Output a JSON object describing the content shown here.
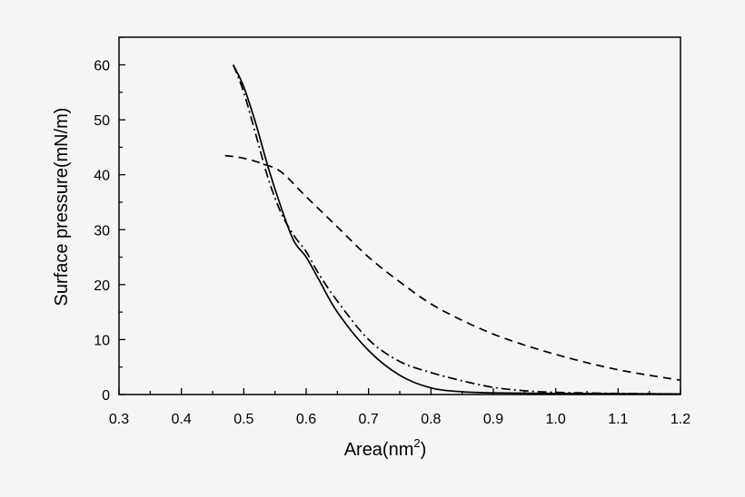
{
  "chart_data": {
    "type": "line",
    "title": "",
    "xlabel": "Area(nm",
    "xlabel_sup": "2",
    "xlabel_close": ")",
    "ylabel": "Surface pressure(mN/m)",
    "xlim": [
      0.3,
      1.2
    ],
    "ylim": [
      0,
      65
    ],
    "xticks": [
      0.3,
      0.4,
      0.5,
      0.6,
      0.7,
      0.8,
      0.9,
      1.0,
      1.1,
      1.2
    ],
    "xtick_labels": [
      "0.3",
      "0.4",
      "0.5",
      "0.6",
      "0.7",
      "0.8",
      "0.9",
      "1.0",
      "1.1",
      "1.2"
    ],
    "yticks": [
      0,
      10,
      20,
      30,
      40,
      50,
      60
    ],
    "ytick_labels": [
      "0",
      "10",
      "20",
      "30",
      "40",
      "50",
      "60"
    ],
    "grid": false,
    "legend": "none",
    "series": [
      {
        "style": "solid",
        "color": "#000000",
        "x": [
          0.483,
          0.5,
          0.52,
          0.54,
          0.56,
          0.58,
          0.6,
          0.62,
          0.65,
          0.7,
          0.75,
          0.8,
          0.85,
          0.9,
          1.0,
          1.1,
          1.2
        ],
        "y": [
          60,
          56,
          49,
          41,
          34,
          28,
          25,
          21,
          15,
          8,
          3.5,
          1.2,
          0.5,
          0.3,
          0.2,
          0.15,
          0.1
        ]
      },
      {
        "style": "dash-dot",
        "color": "#000000",
        "x": [
          0.483,
          0.5,
          0.52,
          0.54,
          0.56,
          0.58,
          0.6,
          0.62,
          0.65,
          0.7,
          0.75,
          0.8,
          0.85,
          0.9,
          0.95,
          1.0,
          1.1,
          1.2
        ],
        "y": [
          60,
          55,
          47,
          39,
          33,
          29,
          26,
          22,
          17,
          10,
          6,
          4,
          2.5,
          1.3,
          0.7,
          0.4,
          0.2,
          0.1
        ]
      },
      {
        "style": "dashed",
        "color": "#000000",
        "x": [
          0.47,
          0.5,
          0.53,
          0.56,
          0.6,
          0.65,
          0.7,
          0.75,
          0.8,
          0.85,
          0.9,
          0.95,
          1.0,
          1.05,
          1.1,
          1.15,
          1.2
        ],
        "y": [
          43.5,
          43,
          42,
          40.5,
          36,
          30.5,
          25,
          20.5,
          16.5,
          13.5,
          11,
          9,
          7.3,
          5.8,
          4.5,
          3.5,
          2.6
        ]
      }
    ]
  }
}
